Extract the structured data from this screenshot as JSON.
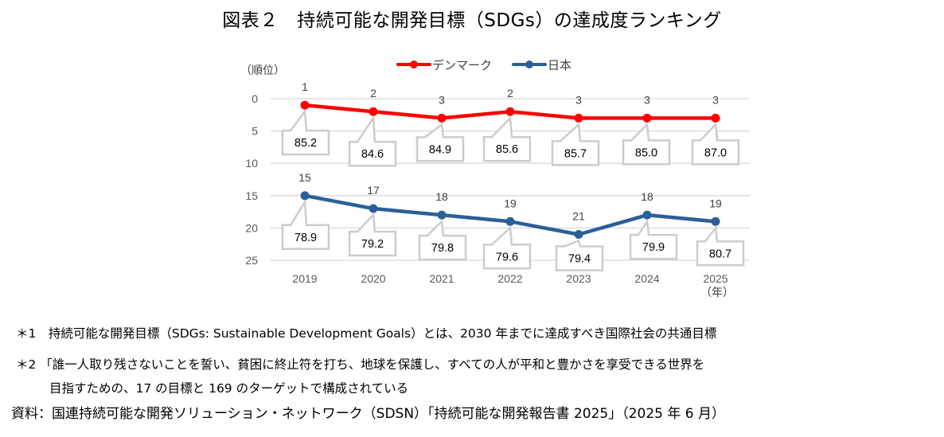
{
  "title": "図表２　持続可能な開発目標（SDGs）の達成度ランキング",
  "chart_data": {
    "type": "line",
    "title": "図表２　持続可能な開発目標（SDGs）の達成度ランキング",
    "ylabel": "（順位）",
    "xlabel": "（年）",
    "y_inverted": true,
    "ylim": [
      0,
      25
    ],
    "yticks": [
      0,
      5,
      10,
      15,
      20,
      25
    ],
    "grid": true,
    "legend_position": "top",
    "categories": [
      "2019",
      "2020",
      "2021",
      "2022",
      "2023",
      "2024",
      "2025"
    ],
    "series": [
      {
        "name": "デンマーク",
        "color": "#ff0000",
        "values": [
          1,
          2,
          3,
          2,
          3,
          3,
          3
        ],
        "scores": [
          "85.2",
          "84.6",
          "84.9",
          "85.6",
          "85.7",
          "85.0",
          "87.0"
        ]
      },
      {
        "name": "日本",
        "color": "#2a5f99",
        "values": [
          15,
          17,
          18,
          19,
          21,
          18,
          19
        ],
        "scores": [
          "78.9",
          "79.2",
          "79.8",
          "79.6",
          "79.4",
          "79.9",
          "80.7"
        ]
      }
    ]
  },
  "notes": {
    "note1": "＊1　持続可能な開発目標（SDGs: Sustainable Development Goals）とは、2030 年までに達成すべき国際社会の共通目標",
    "note2_line1": "＊2 「誰一人取り残さないことを誓い、貧困に終止符を打ち、地球を保護し、すべての人が平和と豊かさを享受できる世界を",
    "note2_line2": "目指すための、17 の目標と 169 のターゲットで構成されている",
    "source": "資料：国連持続可能な開発ソリューション・ネットワーク（SDSN）「持続可能な開発報告書 2025」（2025 年 6 月）"
  }
}
